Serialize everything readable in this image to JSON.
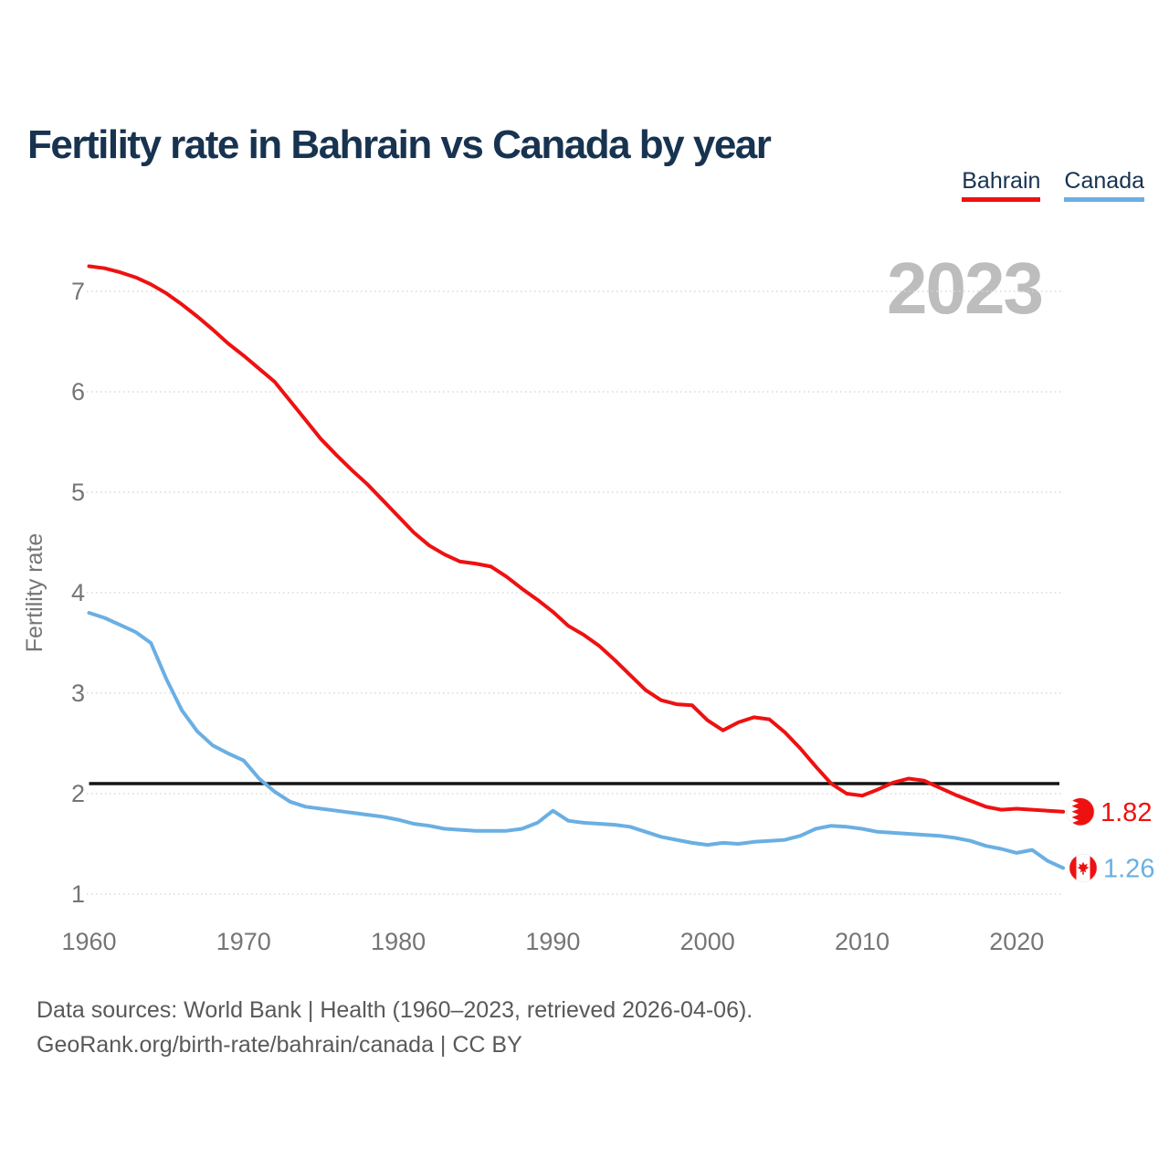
{
  "title": "Fertility rate in Bahrain vs Canada by year",
  "watermark": "2023",
  "legend": [
    {
      "label": "Bahrain",
      "color": "#ee1111"
    },
    {
      "label": "Canada",
      "color": "#6aafe3"
    }
  ],
  "colors": {
    "bahrain": "#ee1111",
    "canada": "#6aafe3",
    "title": "#173350",
    "axis_text": "#757575",
    "watermark": "#bdbdbd",
    "grid": "#d9d9d9",
    "reference_line": "#141414",
    "footer": "#595959",
    "flag_white": "#ffffff"
  },
  "footer": {
    "line1": "Data sources: World Bank | Health (1960–2023, retrieved 2026-04-06).",
    "line2": "GeoRank.org/birth-rate/bahrain/canada | CC BY"
  },
  "chart_data": {
    "type": "line",
    "title": "Fertility rate in Bahrain vs Canada by year",
    "xlabel": "",
    "ylabel": "Fertility rate",
    "grid": "horizontal-dotted",
    "legend_position": "top-right",
    "xlim": [
      1960,
      2023
    ],
    "ylim": [
      1,
      7.3
    ],
    "x_ticks": [
      1960,
      1970,
      1980,
      1990,
      2000,
      2010,
      2020
    ],
    "y_ticks": [
      1,
      2,
      3,
      4,
      5,
      6,
      7
    ],
    "reference_line": {
      "value": 2.1
    },
    "years": [
      1960,
      1961,
      1962,
      1963,
      1964,
      1965,
      1966,
      1967,
      1968,
      1969,
      1970,
      1971,
      1972,
      1973,
      1974,
      1975,
      1976,
      1977,
      1978,
      1979,
      1980,
      1981,
      1982,
      1983,
      1984,
      1985,
      1986,
      1987,
      1988,
      1989,
      1990,
      1991,
      1992,
      1993,
      1994,
      1995,
      1996,
      1997,
      1998,
      1999,
      2000,
      2001,
      2002,
      2003,
      2004,
      2005,
      2006,
      2007,
      2008,
      2009,
      2010,
      2011,
      2012,
      2013,
      2014,
      2015,
      2016,
      2017,
      2018,
      2019,
      2020,
      2021,
      2022,
      2023
    ],
    "series": [
      {
        "name": "Bahrain",
        "flag": "bahrain",
        "end_label": "1.82",
        "values": [
          7.25,
          7.23,
          7.19,
          7.14,
          7.07,
          6.98,
          6.87,
          6.75,
          6.62,
          6.48,
          6.36,
          6.23,
          6.1,
          5.91,
          5.72,
          5.53,
          5.37,
          5.22,
          5.08,
          4.92,
          4.76,
          4.6,
          4.47,
          4.38,
          4.31,
          4.29,
          4.26,
          4.16,
          4.04,
          3.93,
          3.81,
          3.67,
          3.58,
          3.47,
          3.33,
          3.18,
          3.03,
          2.93,
          2.89,
          2.88,
          2.73,
          2.63,
          2.71,
          2.76,
          2.74,
          2.61,
          2.45,
          2.27,
          2.1,
          2.0,
          1.98,
          2.04,
          2.11,
          2.15,
          2.13,
          2.06,
          1.99,
          1.93,
          1.87,
          1.84,
          1.85,
          1.84,
          1.83,
          1.82
        ]
      },
      {
        "name": "Canada",
        "flag": "canada",
        "end_label": "1.26",
        "values": [
          3.8,
          3.75,
          3.68,
          3.61,
          3.5,
          3.14,
          2.83,
          2.62,
          2.48,
          2.4,
          2.33,
          2.15,
          2.02,
          1.92,
          1.87,
          1.85,
          1.83,
          1.81,
          1.79,
          1.77,
          1.74,
          1.7,
          1.68,
          1.65,
          1.64,
          1.63,
          1.63,
          1.63,
          1.65,
          1.71,
          1.83,
          1.73,
          1.71,
          1.7,
          1.69,
          1.67,
          1.62,
          1.57,
          1.54,
          1.51,
          1.49,
          1.51,
          1.5,
          1.52,
          1.53,
          1.54,
          1.58,
          1.65,
          1.68,
          1.67,
          1.65,
          1.62,
          1.61,
          1.6,
          1.59,
          1.58,
          1.56,
          1.53,
          1.48,
          1.45,
          1.41,
          1.44,
          1.33,
          1.26
        ]
      }
    ]
  }
}
